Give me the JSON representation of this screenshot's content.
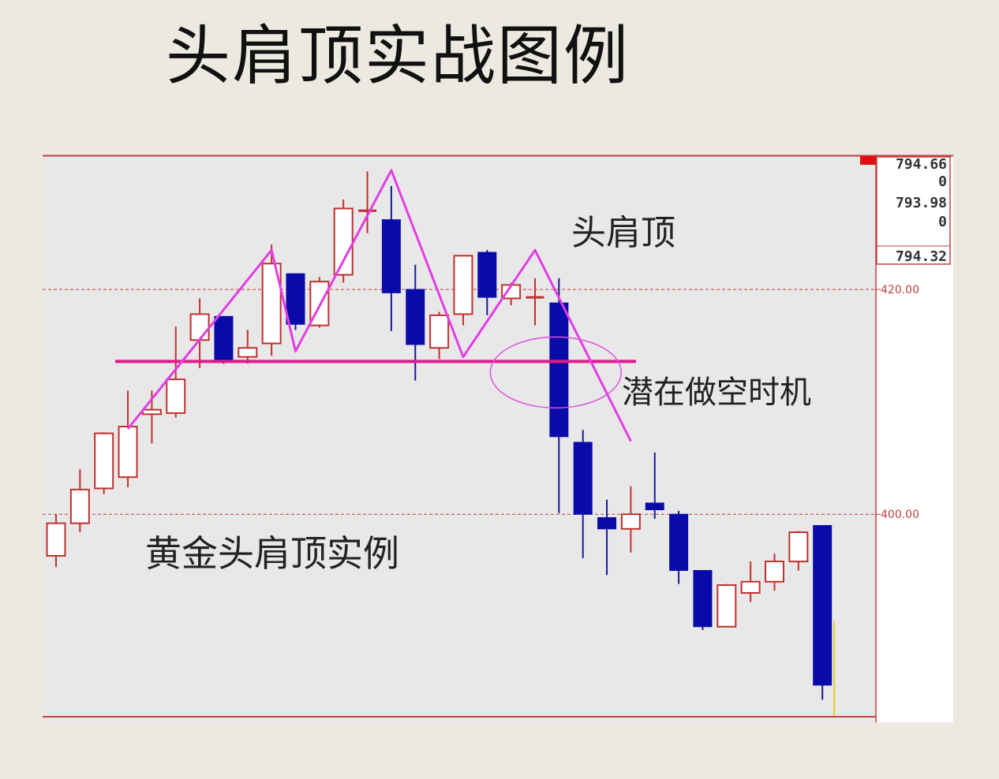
{
  "title": "头肩顶实战图例",
  "chart_data": {
    "type": "candlestick",
    "ylim": [
      381.5,
      432.0
    ],
    "y_ticks": [
      {
        "value": 420,
        "label": "420.00"
      },
      {
        "value": 400,
        "label": "400.00"
      }
    ],
    "info_box": [
      "794.66",
      "0",
      "793.98",
      "0",
      "794.32"
    ],
    "annotations": {
      "pattern_label": "头肩顶",
      "entry_label": "潜在做空时机",
      "caption": "黄金头肩顶实例"
    },
    "neckline": 413.6,
    "zigzag": [
      {
        "index": 3,
        "value": 407.6
      },
      {
        "index": 9,
        "value": 423.5
      },
      {
        "index": 10,
        "value": 414.5
      },
      {
        "index": 14,
        "value": 430.6
      },
      {
        "index": 17,
        "value": 414.0
      },
      {
        "index": 20,
        "value": 423.5
      },
      {
        "index": 24,
        "value": 406.5
      }
    ],
    "candles": [
      {
        "o": 396.3,
        "h": 400.0,
        "l": 395.3,
        "c": 399.2
      },
      {
        "o": 399.2,
        "h": 404.0,
        "l": 398.4,
        "c": 402.2
      },
      {
        "o": 402.3,
        "h": 407.3,
        "l": 401.8,
        "c": 407.2
      },
      {
        "o": 403.3,
        "h": 411.0,
        "l": 402.4,
        "c": 407.8
      },
      {
        "o": 408.9,
        "h": 411.0,
        "l": 406.3,
        "c": 409.3
      },
      {
        "o": 409.0,
        "h": 416.7,
        "l": 408.6,
        "c": 412.0
      },
      {
        "o": 415.5,
        "h": 419.2,
        "l": 413.0,
        "c": 417.8
      },
      {
        "o": 417.6,
        "h": 417.6,
        "l": 413.4,
        "c": 413.7
      },
      {
        "o": 414.0,
        "h": 416.4,
        "l": 413.4,
        "c": 414.8
      },
      {
        "o": 415.2,
        "h": 424.0,
        "l": 414.1,
        "c": 422.3
      },
      {
        "o": 421.4,
        "h": 421.4,
        "l": 416.4,
        "c": 416.9
      },
      {
        "o": 416.8,
        "h": 421.1,
        "l": 416.6,
        "c": 420.7
      },
      {
        "o": 421.3,
        "h": 428.0,
        "l": 420.6,
        "c": 427.2
      },
      {
        "o": 427.0,
        "h": 430.5,
        "l": 425.0,
        "c": 427.0
      },
      {
        "o": 426.2,
        "h": 429.2,
        "l": 416.3,
        "c": 419.7
      },
      {
        "o": 420.0,
        "h": 422.2,
        "l": 411.9,
        "c": 415.1
      },
      {
        "o": 414.8,
        "h": 418.0,
        "l": 413.8,
        "c": 417.7
      },
      {
        "o": 417.8,
        "h": 423.0,
        "l": 416.8,
        "c": 423.0
      },
      {
        "o": 423.3,
        "h": 423.5,
        "l": 417.7,
        "c": 419.3
      },
      {
        "o": 419.2,
        "h": 420.6,
        "l": 418.6,
        "c": 420.4
      },
      {
        "o": 419.3,
        "h": 421.0,
        "l": 416.8,
        "c": 419.3
      },
      {
        "o": 418.8,
        "h": 421.0,
        "l": 400.1,
        "c": 406.9
      },
      {
        "o": 406.4,
        "h": 407.5,
        "l": 396.1,
        "c": 400.0
      },
      {
        "o": 399.7,
        "h": 401.3,
        "l": 394.6,
        "c": 398.7
      },
      {
        "o": 398.7,
        "h": 402.5,
        "l": 396.6,
        "c": 400.0
      },
      {
        "o": 401.0,
        "h": 405.5,
        "l": 399.6,
        "c": 400.4
      },
      {
        "o": 400.0,
        "h": 400.3,
        "l": 393.8,
        "c": 395.0
      },
      {
        "o": 395.0,
        "h": 395.0,
        "l": 389.7,
        "c": 390.0
      },
      {
        "o": 390.0,
        "h": 393.8,
        "l": 390.0,
        "c": 393.7
      },
      {
        "o": 393.0,
        "h": 395.8,
        "l": 392.2,
        "c": 394.0
      },
      {
        "o": 394.0,
        "h": 396.5,
        "l": 393.2,
        "c": 395.8
      },
      {
        "o": 395.8,
        "h": 398.5,
        "l": 395.0,
        "c": 398.4
      },
      {
        "o": 399.0,
        "h": 399.0,
        "l": 383.5,
        "c": 384.8
      }
    ]
  }
}
